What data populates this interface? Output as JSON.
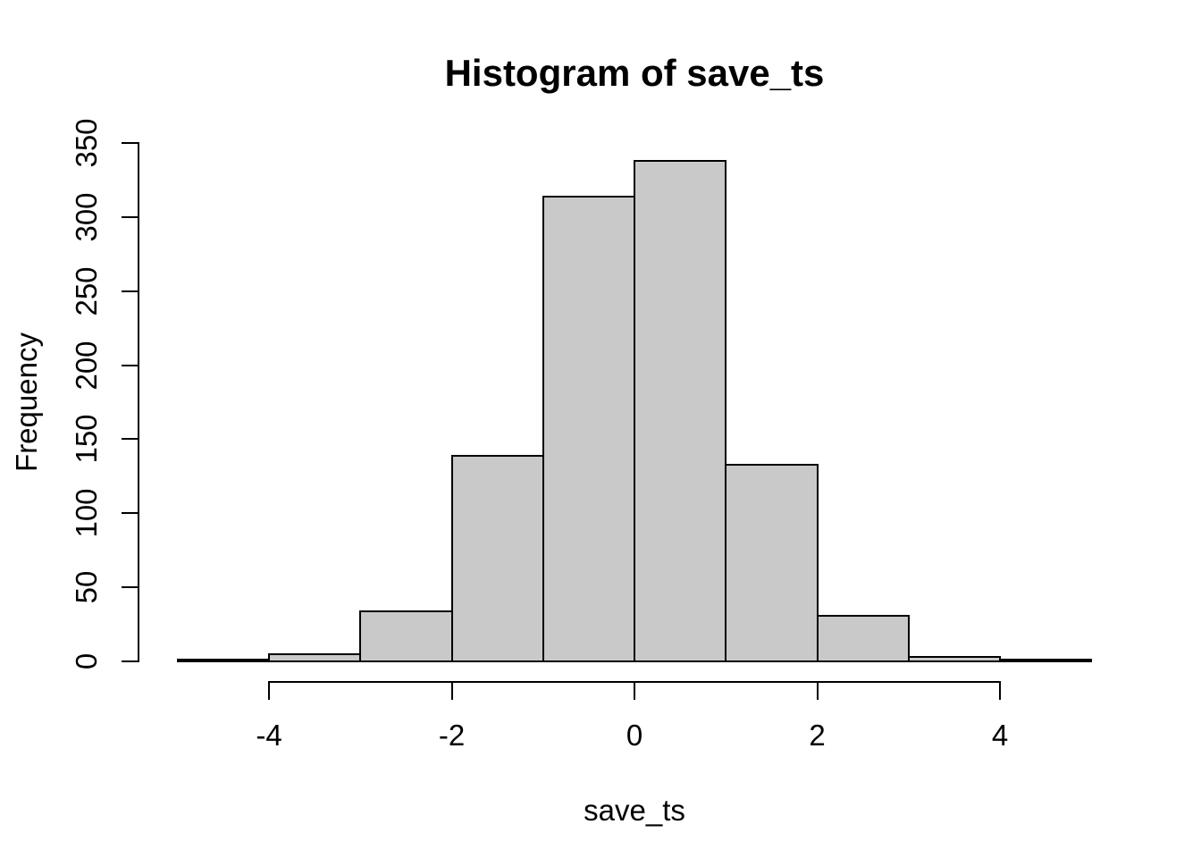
{
  "chart_data": {
    "type": "bar",
    "style": "r-base-histogram",
    "title": "Histogram of save_ts",
    "xlabel": "save_ts",
    "ylabel": "Frequency",
    "breaks": [
      -5,
      -4,
      -3,
      -2,
      -1,
      0,
      1,
      2,
      3,
      4,
      5
    ],
    "counts": [
      1,
      5,
      34,
      139,
      314,
      338,
      133,
      31,
      3,
      1
    ],
    "x_ticks": [
      -4,
      -2,
      0,
      2,
      4
    ],
    "y_ticks": [
      0,
      50,
      100,
      150,
      200,
      250,
      300,
      350
    ],
    "xlim": [
      -5,
      5
    ],
    "ylim": [
      0,
      350
    ],
    "grid": false,
    "legend": "none",
    "bar_fill": "#c9c9c9",
    "bar_border": "#000000",
    "axis_color": "#000000",
    "background": "#ffffff"
  }
}
